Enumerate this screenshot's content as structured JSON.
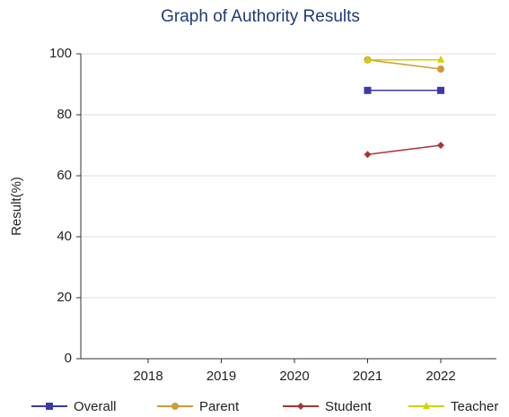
{
  "chart_data": {
    "type": "line",
    "title": "Graph of Authority Results",
    "ylabel": "Result(%)",
    "categories": [
      "2018",
      "2019",
      "2020",
      "2021",
      "2022"
    ],
    "series": [
      {
        "name": "Overall",
        "color": "#3a3aa8",
        "marker": "square",
        "values": [
          null,
          null,
          null,
          88,
          88
        ]
      },
      {
        "name": "Parent",
        "color": "#d09a38",
        "marker": "circle",
        "values": [
          null,
          null,
          null,
          98,
          95
        ]
      },
      {
        "name": "Student",
        "color": "#a83434",
        "marker": "diamond",
        "values": [
          null,
          null,
          null,
          67,
          70
        ]
      },
      {
        "name": "Teacher",
        "color": "#d2d200",
        "marker": "triangle",
        "values": [
          null,
          null,
          null,
          98,
          98
        ]
      }
    ],
    "ylim": [
      0,
      100
    ],
    "yticks": [
      0,
      20,
      40,
      60,
      80,
      100
    ],
    "grid": true,
    "legend": "bottom"
  }
}
